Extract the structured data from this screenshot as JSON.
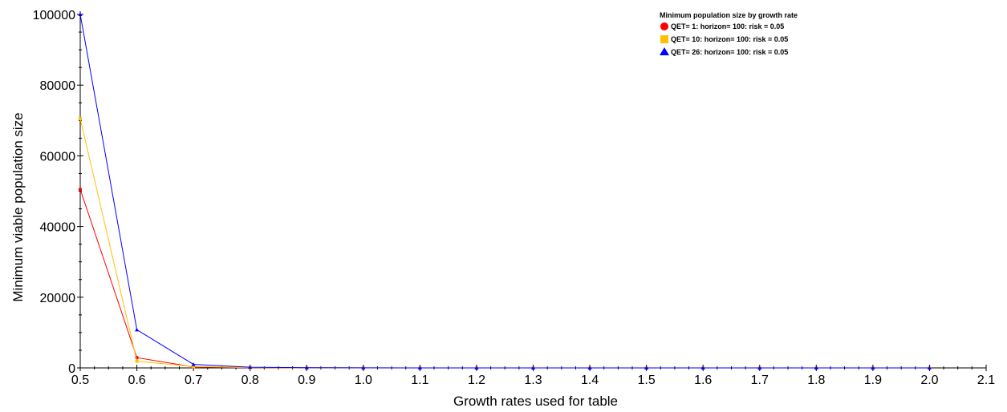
{
  "chart_data": {
    "type": "line",
    "xlabel": "Growth rates used for table",
    "ylabel": "Minimum viable population size",
    "xlim": [
      0.5,
      2.1
    ],
    "ylim": [
      0,
      100000
    ],
    "x_ticks": [
      "0.5",
      "0.6",
      "0.7",
      "0.8",
      "0.9",
      "1.0",
      "1.1",
      "1.2",
      "1.3",
      "1.4",
      "1.5",
      "1.6",
      "1.7",
      "1.8",
      "1.9",
      "2.0",
      "2.1"
    ],
    "y_ticks": [
      "0",
      "20000",
      "40000",
      "60000",
      "80000",
      "100000"
    ],
    "x": [
      0.5,
      0.6,
      0.7,
      0.8,
      0.9,
      1.0,
      1.1,
      1.2,
      1.3,
      1.4,
      1.5,
      1.6,
      1.7,
      1.8,
      1.9,
      2.0
    ],
    "legend_title": "Minimum population size by growth rate",
    "legend_position": "top-right",
    "grid": false,
    "series": [
      {
        "name": "QET= 1: horizon= 100: risk = 0.05",
        "color": "#ff0000",
        "marker": "circle",
        "values": [
          50500,
          2900,
          300,
          60,
          20,
          10,
          5,
          5,
          5,
          5,
          5,
          5,
          5,
          5,
          5,
          5
        ]
      },
      {
        "name": "QET= 10: horizon= 100: risk = 0.05",
        "color": "#ffc000",
        "marker": "square",
        "values": [
          70500,
          1900,
          400,
          90,
          30,
          15,
          8,
          6,
          5,
          5,
          5,
          5,
          5,
          5,
          5,
          5
        ]
      },
      {
        "name": "QET= 26: horizon= 100: risk = 0.05",
        "color": "#0000ff",
        "marker": "triangle",
        "values": [
          100000,
          10800,
          1000,
          200,
          60,
          25,
          10,
          8,
          6,
          5,
          5,
          5,
          5,
          5,
          5,
          5
        ]
      }
    ]
  }
}
